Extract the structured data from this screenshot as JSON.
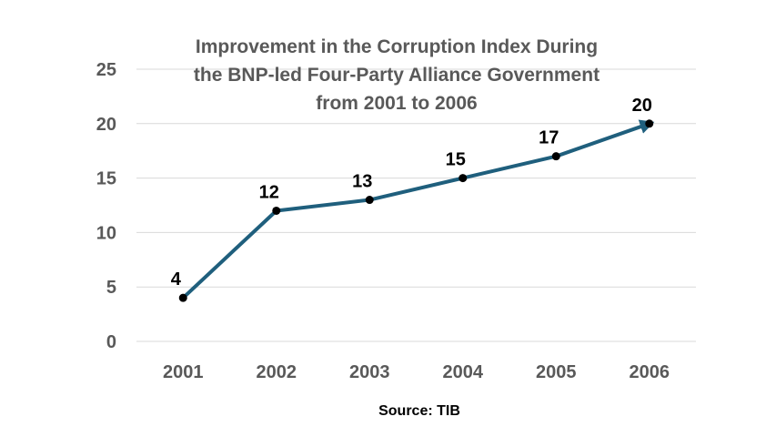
{
  "chart_data": {
    "type": "line",
    "title_lines": [
      "Improvement in the Corruption Index During",
      "the BNP-led Four-Party Alliance Government",
      "from 2001 to 2006"
    ],
    "categories": [
      "2001",
      "2002",
      "2003",
      "2004",
      "2005",
      "2006"
    ],
    "series": [
      {
        "values": [
          4,
          12,
          13,
          15,
          17,
          20
        ]
      }
    ],
    "ylim": [
      0,
      25
    ],
    "yticks": [
      0,
      5,
      10,
      15,
      20,
      25
    ],
    "grid": true,
    "line_color": "#1f5f7d",
    "marker_color": "#000000",
    "end_arrow": true,
    "data_labels": true,
    "source": "Source: TIB"
  }
}
